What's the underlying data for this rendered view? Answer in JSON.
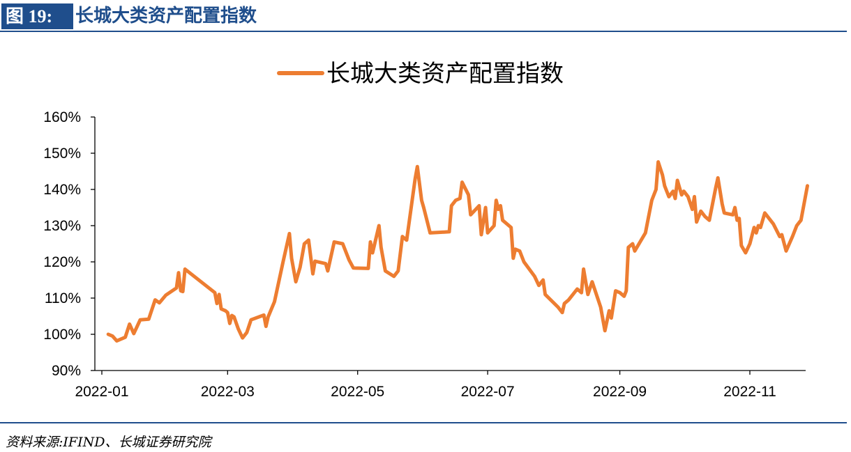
{
  "header": {
    "fig_label": "图 19:",
    "title": "长城大类资产配置指数"
  },
  "footer": {
    "source": "资料来源:IFIND、长城证券研究院"
  },
  "chart_data": {
    "type": "line",
    "title": "",
    "legend_position": "top-center",
    "xlabel": "",
    "ylabel": "",
    "x_ticks": [
      "2022-01",
      "2022-03",
      "2022-05",
      "2022-07",
      "2022-09",
      "2022-11"
    ],
    "y_ticks": [
      "90%",
      "100%",
      "110%",
      "120%",
      "130%",
      "140%",
      "150%",
      "160%"
    ],
    "ylim": [
      90,
      160
    ],
    "xlim": [
      "2022-01-01",
      "2022-11-28"
    ],
    "grid": false,
    "line_color": "#ED7D31",
    "series": [
      {
        "name": "长城大类资产配置指数",
        "points": [
          [
            "2022-01-04",
            100
          ],
          [
            "2022-01-06",
            99.5
          ],
          [
            "2022-01-08",
            98.2
          ],
          [
            "2022-01-12",
            99.2
          ],
          [
            "2022-01-14",
            102.8
          ],
          [
            "2022-01-16",
            100.2
          ],
          [
            "2022-01-19",
            104
          ],
          [
            "2022-01-23",
            104.2
          ],
          [
            "2022-01-26",
            109.5
          ],
          [
            "2022-01-28",
            108.7
          ],
          [
            "2022-01-31",
            110.8
          ],
          [
            "2022-02-05",
            112.8
          ],
          [
            "2022-02-06",
            117
          ],
          [
            "2022-02-07",
            112
          ],
          [
            "2022-02-08",
            111.8
          ],
          [
            "2022-02-09",
            118
          ],
          [
            "2022-02-23",
            111.5
          ],
          [
            "2022-02-24",
            108.5
          ],
          [
            "2022-02-25",
            111
          ],
          [
            "2022-02-26",
            107
          ],
          [
            "2022-02-28",
            106.5
          ],
          [
            "2022-03-01",
            106
          ],
          [
            "2022-03-02",
            103
          ],
          [
            "2022-03-03",
            105.2
          ],
          [
            "2022-03-04",
            104.8
          ],
          [
            "2022-03-06",
            101.5
          ],
          [
            "2022-03-08",
            99
          ],
          [
            "2022-03-10",
            100.5
          ],
          [
            "2022-03-12",
            104
          ],
          [
            "2022-03-18",
            105.3
          ],
          [
            "2022-03-19",
            102.2
          ],
          [
            "2022-03-20",
            104.8
          ],
          [
            "2022-03-23",
            109
          ],
          [
            "2022-03-27",
            120
          ],
          [
            "2022-03-30",
            127.8
          ],
          [
            "2022-03-31",
            121
          ],
          [
            "2022-04-02",
            114.5
          ],
          [
            "2022-04-04",
            118.5
          ],
          [
            "2022-04-06",
            125
          ],
          [
            "2022-04-08",
            126
          ],
          [
            "2022-04-10",
            116.7
          ],
          [
            "2022-04-11",
            120.2
          ],
          [
            "2022-04-16",
            119.5
          ],
          [
            "2022-04-17",
            117.5
          ],
          [
            "2022-04-20",
            125.5
          ],
          [
            "2022-04-24",
            125
          ],
          [
            "2022-04-27",
            120.5
          ],
          [
            "2022-04-29",
            118.3
          ],
          [
            "2022-05-06",
            118.2
          ],
          [
            "2022-05-07",
            125.5
          ],
          [
            "2022-05-08",
            122.5
          ],
          [
            "2022-05-11",
            130
          ],
          [
            "2022-05-12",
            124
          ],
          [
            "2022-05-14",
            117.5
          ],
          [
            "2022-05-18",
            116
          ],
          [
            "2022-05-20",
            117.5
          ],
          [
            "2022-05-22",
            127
          ],
          [
            "2022-05-24",
            126
          ],
          [
            "2022-05-28",
            143
          ],
          [
            "2022-05-29",
            146.3
          ],
          [
            "2022-05-31",
            137
          ],
          [
            "2022-06-01",
            135
          ],
          [
            "2022-06-04",
            128
          ],
          [
            "2022-06-13",
            128.3
          ],
          [
            "2022-06-14",
            135.5
          ],
          [
            "2022-06-16",
            137
          ],
          [
            "2022-06-18",
            137.5
          ],
          [
            "2022-06-19",
            142
          ],
          [
            "2022-06-22",
            138.5
          ],
          [
            "2022-06-23",
            133
          ],
          [
            "2022-06-27",
            135.5
          ],
          [
            "2022-06-28",
            127.5
          ],
          [
            "2022-06-30",
            135
          ],
          [
            "2022-07-01",
            128
          ],
          [
            "2022-07-04",
            130
          ],
          [
            "2022-07-05",
            137
          ],
          [
            "2022-07-06",
            134.5
          ],
          [
            "2022-07-07",
            135.5
          ],
          [
            "2022-07-08",
            131.5
          ],
          [
            "2022-07-12",
            129.5
          ],
          [
            "2022-07-13",
            121
          ],
          [
            "2022-07-14",
            123.5
          ],
          [
            "2022-07-16",
            123
          ],
          [
            "2022-07-18",
            120
          ],
          [
            "2022-07-23",
            116
          ],
          [
            "2022-07-25",
            113.5
          ],
          [
            "2022-07-27",
            115
          ],
          [
            "2022-07-28",
            111
          ],
          [
            "2022-08-03",
            107.5
          ],
          [
            "2022-08-05",
            106
          ],
          [
            "2022-08-06",
            108.5
          ],
          [
            "2022-08-08",
            109.5
          ],
          [
            "2022-08-12",
            112.5
          ],
          [
            "2022-08-14",
            111.5
          ],
          [
            "2022-08-15",
            118
          ],
          [
            "2022-08-17",
            111
          ],
          [
            "2022-08-19",
            114.5
          ],
          [
            "2022-08-23",
            107.5
          ],
          [
            "2022-08-25",
            101
          ],
          [
            "2022-08-27",
            106.5
          ],
          [
            "2022-08-28",
            104.5
          ],
          [
            "2022-08-30",
            112
          ],
          [
            "2022-09-01",
            111.5
          ],
          [
            "2022-09-03",
            110.5
          ],
          [
            "2022-09-04",
            112
          ],
          [
            "2022-09-05",
            124
          ],
          [
            "2022-09-07",
            125
          ],
          [
            "2022-09-08",
            123
          ],
          [
            "2022-09-10",
            125
          ],
          [
            "2022-09-13",
            128
          ],
          [
            "2022-09-16",
            137
          ],
          [
            "2022-09-18",
            140
          ],
          [
            "2022-09-19",
            147.6
          ],
          [
            "2022-09-21",
            144
          ],
          [
            "2022-09-22",
            141
          ],
          [
            "2022-09-24",
            138
          ],
          [
            "2022-09-26",
            139.5
          ],
          [
            "2022-09-27",
            137.5
          ],
          [
            "2022-09-28",
            142.5
          ],
          [
            "2022-09-30",
            138.5
          ],
          [
            "2022-10-01",
            139.5
          ],
          [
            "2022-10-03",
            138
          ],
          [
            "2022-10-05",
            134.5
          ],
          [
            "2022-10-06",
            138
          ],
          [
            "2022-10-07",
            131
          ],
          [
            "2022-10-09",
            134
          ],
          [
            "2022-10-11",
            132.5
          ],
          [
            "2022-10-13",
            131.5
          ],
          [
            "2022-10-16",
            140.5
          ],
          [
            "2022-10-17",
            143.2
          ],
          [
            "2022-10-19",
            136
          ],
          [
            "2022-10-20",
            133.5
          ],
          [
            "2022-10-24",
            133
          ],
          [
            "2022-10-25",
            135
          ],
          [
            "2022-10-26",
            131.5
          ],
          [
            "2022-10-27",
            132
          ],
          [
            "2022-10-28",
            124.5
          ],
          [
            "2022-10-30",
            122.5
          ],
          [
            "2022-11-01",
            125
          ],
          [
            "2022-11-03",
            129.5
          ],
          [
            "2022-11-04",
            128
          ],
          [
            "2022-11-05",
            130
          ],
          [
            "2022-11-06",
            129.5
          ],
          [
            "2022-11-08",
            133.5
          ],
          [
            "2022-11-12",
            130.5
          ],
          [
            "2022-11-15",
            127
          ],
          [
            "2022-11-16",
            127.5
          ],
          [
            "2022-11-18",
            123
          ],
          [
            "2022-11-21",
            127
          ],
          [
            "2022-11-23",
            130
          ],
          [
            "2022-11-25",
            131.5
          ],
          [
            "2022-11-28",
            141
          ]
        ]
      }
    ]
  }
}
